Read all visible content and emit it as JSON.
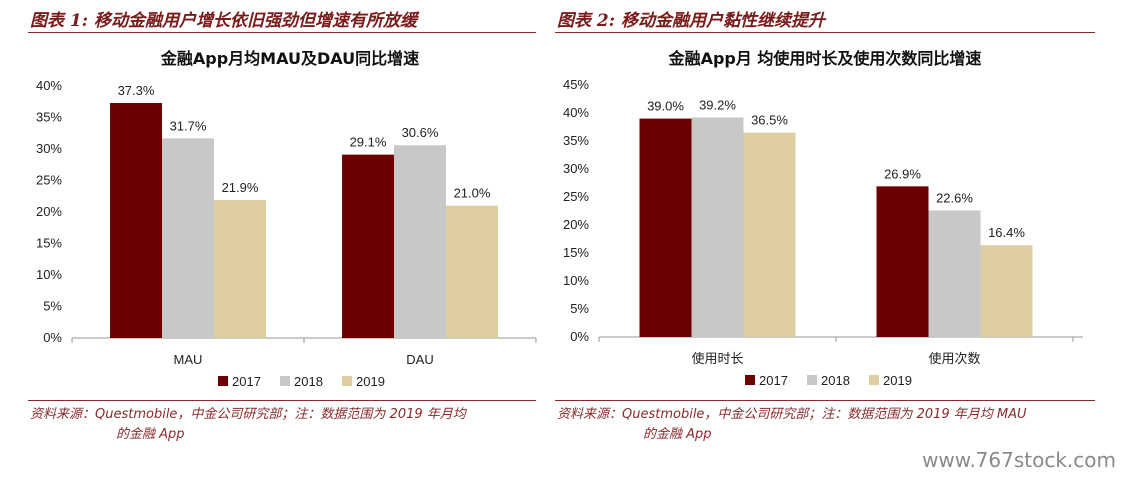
{
  "panels": [
    {
      "fig_title": "图表 1: 移动金融用户增长依旧强劲但增速有所放缓",
      "source_line1": "资料来源：Questmobile，中金公司研究部；注：数据范围为 2019 年月均",
      "source_line2": "的金融 App"
    },
    {
      "fig_title": "图表 2: 移动金融用户黏性继续提升",
      "source_line1": "资料来源：Questmobile，中金公司研究部；注：数据范围为 2019 年月均 MAU",
      "source_line2": "的金融 App"
    }
  ],
  "watermark": "www.767stock.com",
  "chart_data": [
    {
      "type": "bar",
      "title": "金融App月均MAU及DAU同比增速",
      "categories": [
        "MAU",
        "DAU"
      ],
      "series": [
        {
          "name": "2017",
          "values": [
            37.3,
            29.1
          ],
          "labels": [
            "37.3%",
            "29.1%"
          ]
        },
        {
          "name": "2018",
          "values": [
            31.7,
            30.6
          ],
          "labels": [
            "31.7%",
            "30.6%"
          ]
        },
        {
          "name": "2019",
          "values": [
            21.9,
            21.0
          ],
          "labels": [
            "21.9%",
            "21.0%"
          ]
        }
      ],
      "ylim": [
        0,
        40
      ],
      "yticks": [
        "0%",
        "5%",
        "10%",
        "15%",
        "20%",
        "25%",
        "30%",
        "35%",
        "40%"
      ],
      "colors": [
        "#6b0000",
        "#c8c8c8",
        "#decda0"
      ],
      "legend": "bottom",
      "grid": false
    },
    {
      "type": "bar",
      "title": "金融App月 均使用时长及使用次数同比增速",
      "categories": [
        "使用时长",
        "使用次数"
      ],
      "series": [
        {
          "name": "2017",
          "values": [
            39.0,
            26.9
          ],
          "labels": [
            "39.0%",
            "26.9%"
          ]
        },
        {
          "name": "2018",
          "values": [
            39.2,
            22.6
          ],
          "labels": [
            "39.2%",
            "22.6%"
          ]
        },
        {
          "name": "2019",
          "values": [
            36.5,
            16.4
          ],
          "labels": [
            "36.5%",
            "16.4%"
          ]
        }
      ],
      "ylim": [
        0,
        45
      ],
      "yticks": [
        "0%",
        "5%",
        "10%",
        "15%",
        "20%",
        "25%",
        "30%",
        "35%",
        "40%",
        "45%"
      ],
      "colors": [
        "#6b0000",
        "#c8c8c8",
        "#decda0"
      ],
      "legend": "bottom",
      "grid": false
    }
  ]
}
